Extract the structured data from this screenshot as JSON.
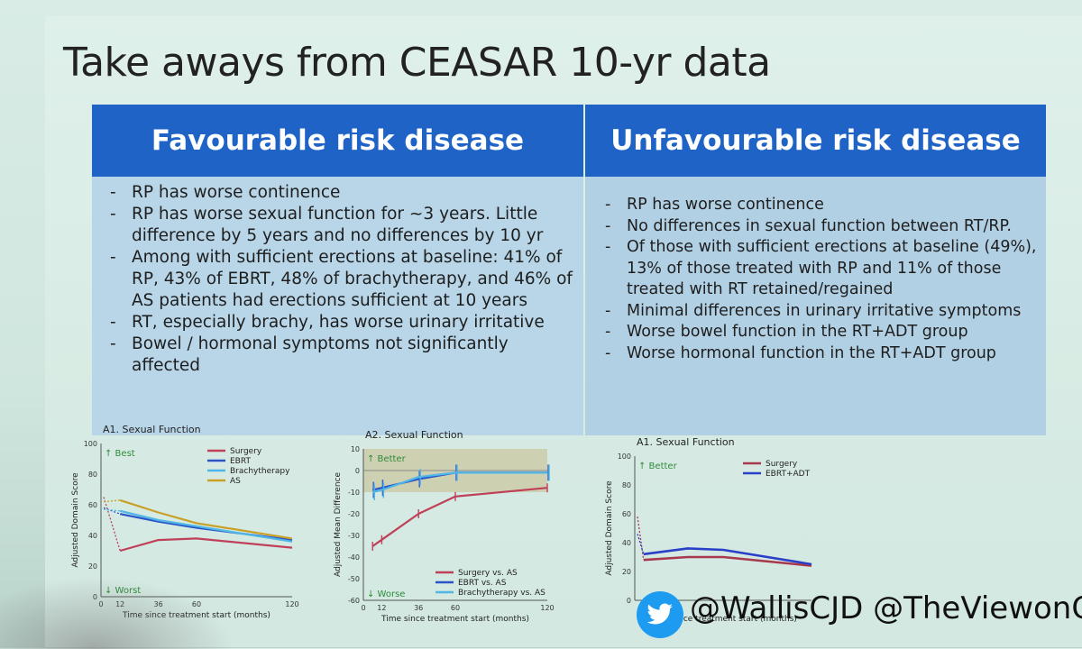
{
  "title": "Take aways from CEASAR 10-yr data",
  "table": {
    "left_header": "Favourable risk disease",
    "right_header": "Unfavourable risk disease",
    "left_items": [
      "RP has worse continence",
      "RP has worse sexual function for ~3 years. Little difference by 5 years and no differences by 10 yr",
      "Among with sufficient erections at baseline: 41% of RP, 43% of EBRT, 48% of brachytherapy, and 46% of AS patients had erections sufficient at 10 years",
      "RT, especially brachy, has worse urinary irritative",
      "Bowel / hormonal symptoms not significantly affected"
    ],
    "right_items": [
      "RP has worse continence",
      "No differences in sexual function between RT/RP.",
      "Of those with sufficient erections at baseline (49%), 13% of those treated with RP and 11% of those treated with RT retained/regained",
      "Minimal differences in urinary irritative symptoms",
      "Worse bowel function in the RT+ADT group",
      "Worse hormonal function in the RT+ADT group"
    ]
  },
  "chart_data": [
    {
      "type": "line",
      "title": "A1. Sexual Function",
      "xlabel": "Time since treatment start (months)",
      "ylabel": "Adjusted Domain Score",
      "top_annotation": "Best",
      "bottom_annotation": "Worst",
      "xticks": [
        "0",
        "12",
        "36",
        "60",
        "120"
      ],
      "yticks": [
        "0",
        "20",
        "40",
        "60",
        "80",
        "100"
      ],
      "ylim": [
        0,
        100
      ],
      "x": [
        12,
        36,
        60,
        120
      ],
      "series": [
        {
          "name": "Surgery",
          "color": "#c0405a",
          "baseline": 65,
          "values": [
            30,
            37,
            38,
            32
          ]
        },
        {
          "name": "EBRT",
          "color": "#2a55c8",
          "baseline": 58,
          "values": [
            54,
            49,
            45,
            37
          ]
        },
        {
          "name": "Brachytherapy",
          "color": "#4fb6e6",
          "baseline": 57,
          "values": [
            56,
            50,
            46,
            36
          ]
        },
        {
          "name": "AS",
          "color": "#c8a028",
          "baseline": 62,
          "values": [
            63,
            55,
            48,
            38
          ]
        }
      ]
    },
    {
      "type": "line",
      "title": "A2. Sexual Function",
      "xlabel": "Time since treatment start (months)",
      "ylabel": "Adjusted Mean Difference",
      "top_annotation": "Better",
      "bottom_annotation": "Worse",
      "xticks": [
        "0",
        "12",
        "36",
        "60",
        "120"
      ],
      "yticks": [
        "-60",
        "-50",
        "-40",
        "-30",
        "-20",
        "-10",
        "0",
        "10"
      ],
      "ylim": [
        -60,
        10
      ],
      "x": [
        6,
        12,
        36,
        60,
        120
      ],
      "series": [
        {
          "name": "Surgery vs. AS",
          "color": "#c0405a",
          "values": [
            -35,
            -32,
            -20,
            -12,
            -8
          ]
        },
        {
          "name": "EBRT vs. AS",
          "color": "#2a55c8",
          "values": [
            -9,
            -8,
            -4,
            -1,
            -1
          ]
        },
        {
          "name": "Brachytherapy vs. AS",
          "color": "#4fb6e6",
          "values": [
            -10,
            -9,
            -3,
            -1,
            -1
          ]
        }
      ]
    },
    {
      "type": "line",
      "title": "A1. Sexual Function",
      "xlabel": "Time since treatment start (months)",
      "ylabel": "Adjusted Domain Score",
      "top_annotation": "Better",
      "yticks": [
        "0",
        "20",
        "40",
        "60",
        "80",
        "100"
      ],
      "ylim": [
        0,
        100
      ],
      "x": [
        6,
        36,
        60,
        120
      ],
      "series": [
        {
          "name": "Surgery",
          "color": "#a8384e",
          "baseline": 58,
          "values": [
            28,
            30,
            30,
            24
          ]
        },
        {
          "name": "EBRT+ADT",
          "color": "#2a3fc8",
          "baseline": 46,
          "values": [
            32,
            36,
            35,
            25
          ]
        }
      ]
    }
  ],
  "social": {
    "icon": "twitter-bird-icon",
    "handles": "@WallisCJD @TheViewonGU"
  }
}
